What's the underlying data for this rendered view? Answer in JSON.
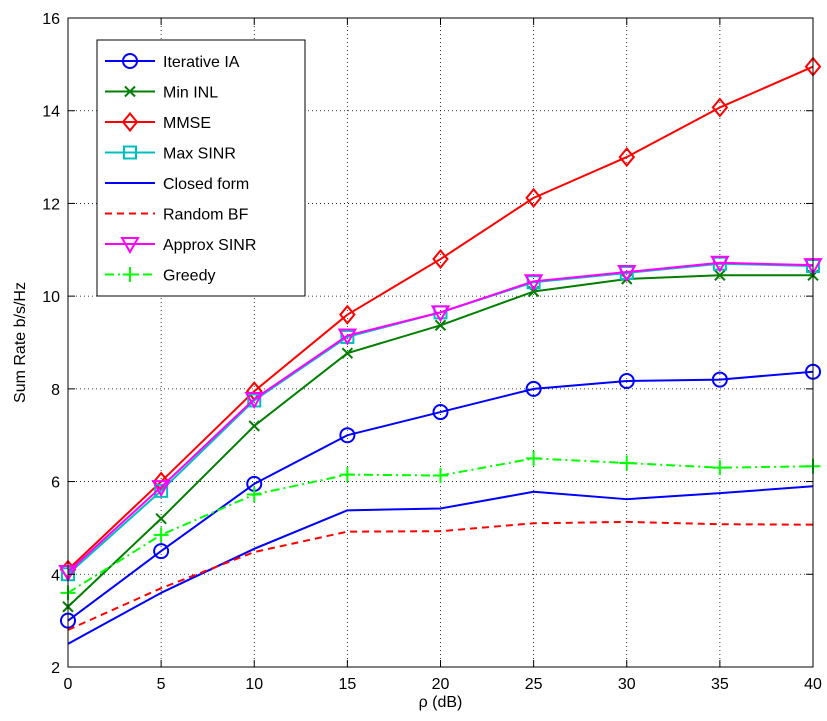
{
  "chart_data": {
    "type": "line",
    "xlabel": "ρ (dB)",
    "ylabel": "Sum Rate b/s/Hz",
    "xlim": [
      0,
      40
    ],
    "ylim": [
      2,
      16
    ],
    "xticks": [
      0,
      5,
      10,
      15,
      20,
      25,
      30,
      35,
      40
    ],
    "yticks": [
      2,
      4,
      6,
      8,
      10,
      12,
      14,
      16
    ],
    "grid": true,
    "legend_position": "top-left",
    "x": [
      0,
      5,
      10,
      15,
      20,
      25,
      30,
      35,
      40
    ],
    "series": [
      {
        "name": "Iterative IA",
        "color": "#0000ff",
        "line": "solid",
        "marker": "circle",
        "values": [
          3.0,
          4.5,
          5.95,
          7.0,
          7.5,
          8.0,
          8.17,
          8.2,
          8.37
        ]
      },
      {
        "name": "Min INL",
        "color": "#007f00",
        "line": "solid",
        "marker": "x",
        "values": [
          3.3,
          5.2,
          7.2,
          8.77,
          9.37,
          10.1,
          10.37,
          10.45,
          10.45
        ]
      },
      {
        "name": "MMSE",
        "color": "#ff0000",
        "line": "solid",
        "marker": "diamond",
        "values": [
          4.1,
          6.0,
          7.95,
          9.6,
          10.8,
          12.12,
          13.0,
          14.07,
          14.95
        ]
      },
      {
        "name": "Max SINR",
        "color": "#00bfbf",
        "line": "solid",
        "marker": "square",
        "values": [
          4.0,
          5.8,
          7.75,
          9.12,
          9.65,
          10.3,
          10.5,
          10.7,
          10.65
        ]
      },
      {
        "name": "Closed form",
        "color": "#0000ff",
        "line": "solid",
        "marker": "none",
        "values": [
          2.5,
          3.6,
          4.55,
          5.38,
          5.42,
          5.78,
          5.62,
          5.75,
          5.9
        ]
      },
      {
        "name": "Random BF",
        "color": "#ff0000",
        "line": "dashed",
        "marker": "none",
        "values": [
          2.8,
          3.7,
          4.48,
          4.92,
          4.93,
          5.1,
          5.13,
          5.08,
          5.07
        ]
      },
      {
        "name": "Approx SINR",
        "color": "#ff00ff",
        "line": "solid",
        "marker": "triangle-down",
        "values": [
          4.05,
          5.88,
          7.78,
          9.15,
          9.65,
          10.32,
          10.52,
          10.72,
          10.67
        ]
      },
      {
        "name": "Greedy",
        "color": "#00ff00",
        "line": "dashdot",
        "marker": "plus",
        "values": [
          3.6,
          4.85,
          5.72,
          6.15,
          6.13,
          6.5,
          6.4,
          6.3,
          6.33
        ]
      }
    ]
  }
}
